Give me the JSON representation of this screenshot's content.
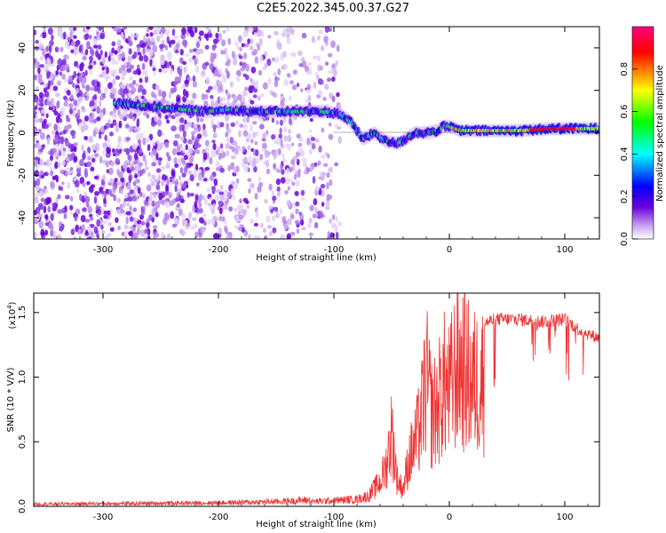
{
  "title": "C2E5.2022.345.00.37.G27",
  "chart_data": [
    {
      "type": "heatmap",
      "xlabel": "Height of straight line (km)",
      "ylabel": "Frequency (Hz)",
      "xlim": [
        -360,
        130
      ],
      "ylim": [
        -50,
        50
      ],
      "x_ticks": [
        -300,
        -200,
        -100,
        0,
        100
      ],
      "y_ticks": [
        -40,
        -20,
        0,
        20,
        40
      ],
      "colorbar": {
        "label": "Normalized spectral amplitude",
        "range": [
          0.0,
          1.0
        ],
        "ticks": [
          "0.0",
          "0.2",
          "0.4",
          "0.6",
          "0.8"
        ],
        "colors": [
          "#ffffff",
          "#c9a6f2",
          "#6a00d9",
          "#0000ff",
          "#00ffff",
          "#00ff00",
          "#ffff00",
          "#ff0000",
          "#ff0080"
        ]
      },
      "ridge": {
        "x": [
          -290,
          -270,
          -250,
          -230,
          -210,
          -190,
          -170,
          -150,
          -130,
          -110,
          -95,
          -85,
          -75,
          -65,
          -55,
          -45,
          -38,
          -30,
          -20,
          -10,
          -5,
          0,
          10,
          30,
          60,
          90,
          110,
          130
        ],
        "y": [
          14,
          13,
          12,
          11,
          10,
          11,
          10,
          10,
          10,
          10,
          9,
          5,
          -3,
          0,
          -4,
          -5,
          -3,
          0,
          0,
          1,
          3,
          3,
          1,
          1,
          1,
          2,
          2,
          2
        ]
      }
    },
    {
      "type": "line",
      "xlabel": "Height of straight line (km)",
      "ylabel": "SNR (10 * V/V)",
      "y_scale_label": "(x10",
      "y_scale_exp": "4",
      "y_scale_close": ")",
      "xlim": [
        -360,
        130
      ],
      "ylim": [
        0,
        1.65
      ],
      "x_ticks": [
        -300,
        -200,
        -100,
        0,
        100
      ],
      "y_ticks": [
        "0.0",
        "0.5",
        "1.0",
        "1.5"
      ],
      "color": "#ee3333",
      "envelope": {
        "x": [
          -360,
          -200,
          -150,
          -110,
          -80,
          -70,
          -60,
          -55,
          -50,
          -45,
          -40,
          -35,
          -30,
          -25,
          -20,
          -15,
          -10,
          -5,
          0,
          5,
          10,
          20,
          30,
          40,
          60,
          80,
          100,
          115,
          130
        ],
        "y": [
          0.02,
          0.03,
          0.04,
          0.06,
          0.08,
          0.12,
          0.28,
          0.45,
          0.85,
          0.3,
          0.2,
          0.55,
          0.7,
          0.95,
          1.45,
          1.05,
          1.15,
          1.4,
          1.3,
          1.55,
          1.62,
          1.4,
          1.47,
          1.5,
          1.5,
          1.48,
          1.5,
          1.4,
          1.35
        ]
      }
    }
  ]
}
